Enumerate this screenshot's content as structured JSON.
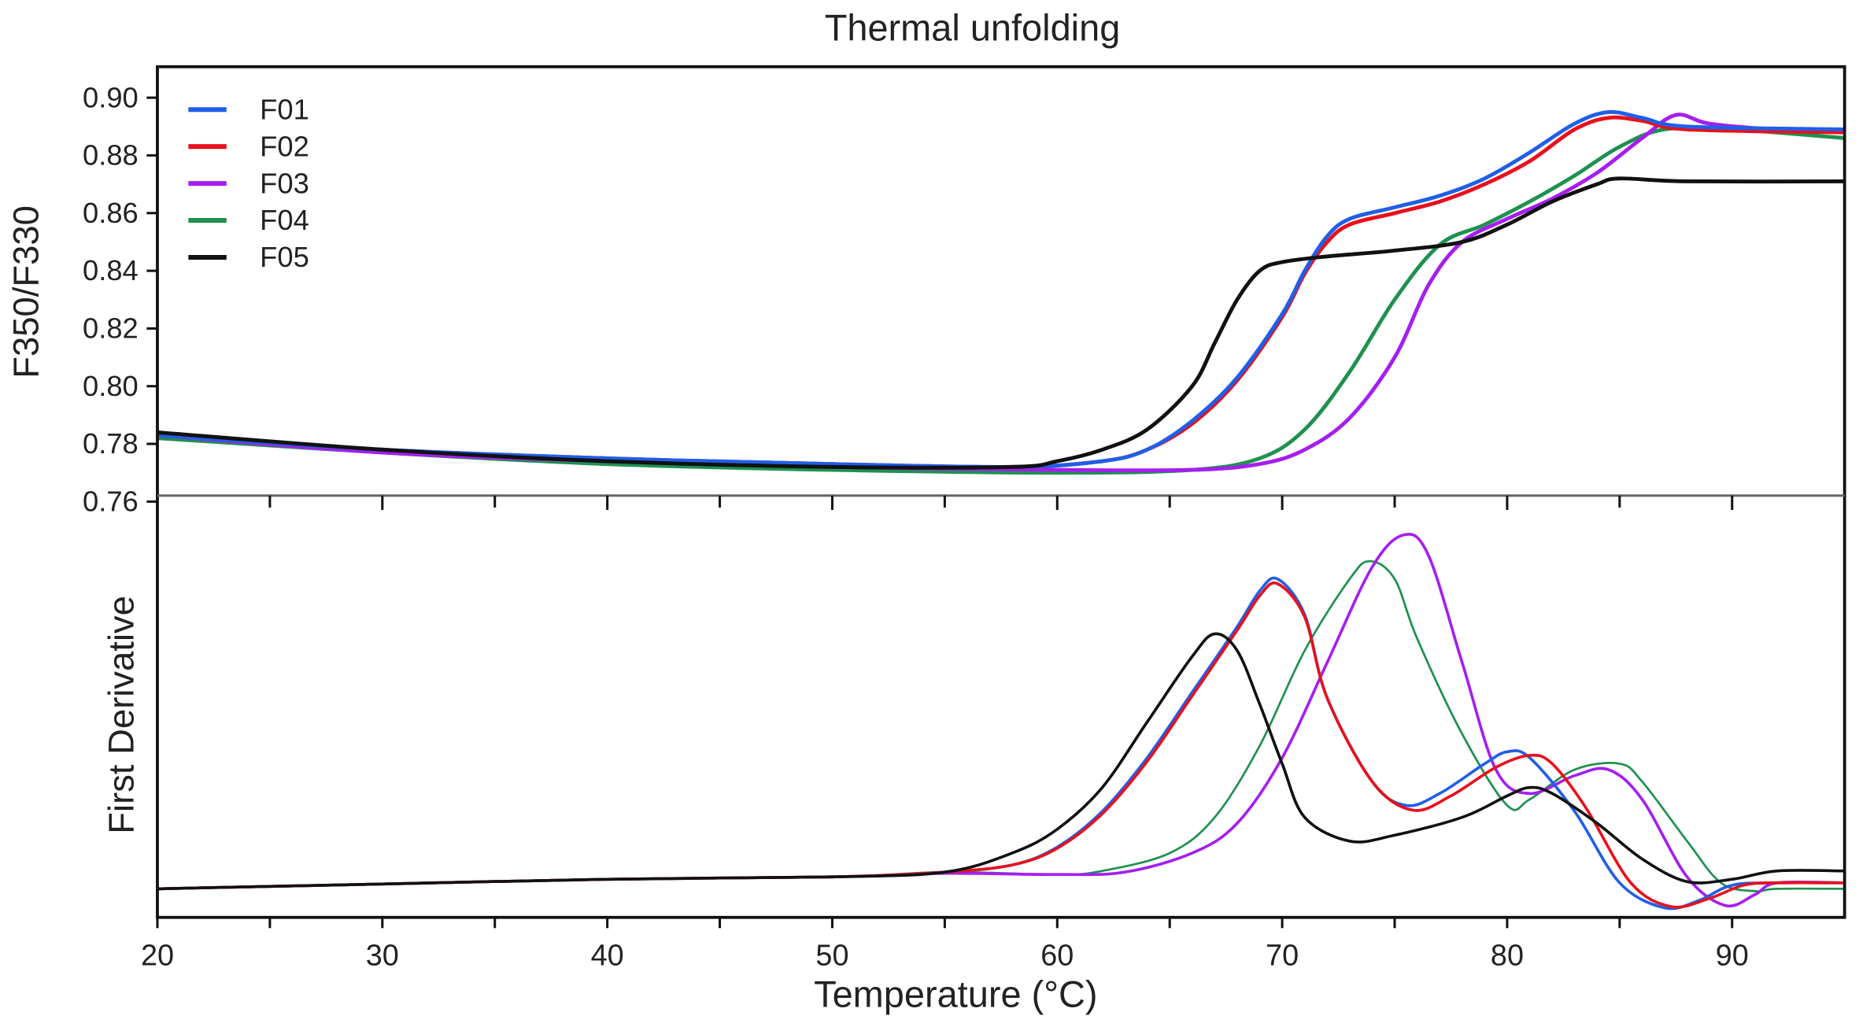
{
  "chart_data": [
    {
      "type": "line",
      "title": "Thermal unfolding",
      "xlabel": "Temperature (°C)",
      "ylabel": "F350/F330",
      "xlim": [
        20,
        95
      ],
      "ylim": [
        0.76,
        0.9
      ],
      "yticks": [
        "0.90",
        "0.88",
        "0.86",
        "0.84",
        "0.82",
        "0.80",
        "0.78",
        "0.76"
      ],
      "ytick_values": [
        0.9,
        0.88,
        0.86,
        0.84,
        0.82,
        0.8,
        0.78,
        0.76
      ],
      "legend_position": "top-left",
      "grid": false,
      "series": [
        {
          "name": "F01",
          "color": "#1f5fe8",
          "x": [
            20,
            30,
            40,
            50,
            58,
            62,
            64,
            66,
            68,
            70,
            71,
            72,
            73,
            75,
            77,
            79,
            81,
            83,
            84.5,
            86,
            88,
            95
          ],
          "y": [
            0.783,
            0.778,
            0.775,
            0.773,
            0.772,
            0.774,
            0.778,
            0.788,
            0.803,
            0.825,
            0.84,
            0.852,
            0.858,
            0.862,
            0.866,
            0.872,
            0.881,
            0.891,
            0.895,
            0.893,
            0.89,
            0.889
          ]
        },
        {
          "name": "F02",
          "color": "#e8101c",
          "x": [
            20,
            30,
            40,
            50,
            58,
            62,
            64,
            66,
            68,
            70,
            71,
            72,
            73,
            75,
            77,
            79,
            81,
            83,
            84.5,
            86,
            88,
            95
          ],
          "y": [
            0.783,
            0.778,
            0.775,
            0.773,
            0.772,
            0.774,
            0.778,
            0.787,
            0.802,
            0.824,
            0.839,
            0.85,
            0.856,
            0.86,
            0.864,
            0.87,
            0.878,
            0.889,
            0.893,
            0.892,
            0.889,
            0.888
          ]
        },
        {
          "name": "F03",
          "color": "#a51ef0",
          "x": [
            20,
            30,
            40,
            50,
            60,
            66,
            69,
            71,
            73,
            75,
            76.5,
            78,
            80,
            82,
            84,
            86,
            87.5,
            89,
            92,
            95
          ],
          "y": [
            0.783,
            0.777,
            0.774,
            0.772,
            0.771,
            0.771,
            0.773,
            0.778,
            0.789,
            0.81,
            0.835,
            0.85,
            0.858,
            0.865,
            0.874,
            0.886,
            0.894,
            0.891,
            0.889,
            0.889
          ]
        },
        {
          "name": "F04",
          "color": "#1e9150",
          "x": [
            20,
            30,
            40,
            50,
            60,
            66,
            69,
            71,
            73,
            75,
            77,
            79,
            81,
            83,
            85,
            87,
            90,
            95
          ],
          "y": [
            0.782,
            0.777,
            0.773,
            0.771,
            0.77,
            0.771,
            0.775,
            0.785,
            0.805,
            0.83,
            0.849,
            0.856,
            0.864,
            0.873,
            0.883,
            0.889,
            0.889,
            0.886
          ]
        },
        {
          "name": "F05",
          "color": "#111111",
          "x": [
            20,
            30,
            40,
            50,
            58,
            60,
            62,
            64,
            66,
            67,
            68,
            69,
            70,
            72,
            75,
            78,
            80,
            82,
            84,
            85,
            88,
            95
          ],
          "y": [
            0.784,
            0.778,
            0.774,
            0.772,
            0.772,
            0.774,
            0.778,
            0.785,
            0.8,
            0.815,
            0.83,
            0.84,
            0.843,
            0.845,
            0.847,
            0.85,
            0.856,
            0.864,
            0.87,
            0.872,
            0.871,
            0.871
          ]
        }
      ]
    },
    {
      "type": "line",
      "xlabel": "Temperature (°C)",
      "ylabel": "First Derivative",
      "xlim": [
        20,
        95
      ],
      "ylim": [
        -0.24,
        3.3
      ],
      "xticks": [
        "20",
        "30",
        "40",
        "50",
        "60",
        "70",
        "80",
        "90"
      ],
      "xtick_values": [
        20,
        30,
        40,
        50,
        60,
        70,
        80,
        90
      ],
      "grid": false,
      "series": [
        {
          "name": "F01",
          "color": "#1f5fe8",
          "x": [
            20,
            30,
            40,
            50,
            55,
            58,
            60,
            62,
            64,
            66,
            68,
            69,
            69.8,
            71,
            72,
            74,
            75.5,
            77,
            79,
            80,
            81,
            83,
            85,
            87,
            88.5,
            90,
            92,
            95
          ],
          "y": [
            0,
            0.04,
            0.08,
            0.1,
            0.14,
            0.2,
            0.35,
            0.65,
            1.1,
            1.65,
            2.2,
            2.5,
            2.6,
            2.3,
            1.6,
            0.9,
            0.7,
            0.8,
            1.05,
            1.15,
            1.1,
            0.65,
            0.05,
            -0.16,
            -0.1,
            0.03,
            0.05,
            0.05
          ]
        },
        {
          "name": "F02",
          "color": "#e8101c",
          "x": [
            20,
            30,
            40,
            50,
            55,
            58,
            60,
            62,
            64,
            66,
            68,
            69,
            69.8,
            71,
            72,
            74,
            75.8,
            77.5,
            79.5,
            81,
            82,
            83.5,
            85.5,
            87.3,
            89,
            90.5,
            92,
            95
          ],
          "y": [
            0,
            0.04,
            0.08,
            0.1,
            0.14,
            0.2,
            0.34,
            0.63,
            1.07,
            1.62,
            2.17,
            2.46,
            2.56,
            2.28,
            1.6,
            0.9,
            0.66,
            0.78,
            1.02,
            1.12,
            1.05,
            0.68,
            0.05,
            -0.15,
            -0.08,
            0.03,
            0.05,
            0.05
          ]
        },
        {
          "name": "F03",
          "color": "#a51ef0",
          "x": [
            20,
            30,
            40,
            50,
            55,
            60,
            63,
            66,
            68,
            70,
            72,
            74,
            75.4,
            76.5,
            78,
            79.5,
            81,
            83,
            84.5,
            86,
            88,
            89.7,
            91,
            92,
            95
          ],
          "y": [
            0,
            0.04,
            0.08,
            0.1,
            0.13,
            0.12,
            0.14,
            0.3,
            0.55,
            1.1,
            1.9,
            2.7,
            2.97,
            2.8,
            1.9,
            1.0,
            0.8,
            0.95,
            1.0,
            0.75,
            0.1,
            -0.14,
            -0.05,
            0.05,
            0.05
          ]
        },
        {
          "name": "F04",
          "color": "#1e9150",
          "x": [
            20,
            30,
            40,
            50,
            55,
            60,
            62,
            65,
            67,
            69,
            71,
            73,
            73.9,
            75,
            76,
            78,
            80,
            81,
            83,
            85,
            86,
            88,
            89.5,
            91,
            92,
            95
          ],
          "y": [
            0,
            0.04,
            0.08,
            0.1,
            0.14,
            0.12,
            0.15,
            0.3,
            0.6,
            1.2,
            2.0,
            2.6,
            2.75,
            2.6,
            2.1,
            1.3,
            0.7,
            0.75,
            1.0,
            1.05,
            0.9,
            0.4,
            0.05,
            -0.02,
            0,
            0
          ]
        },
        {
          "name": "F05",
          "color": "#111111",
          "x": [
            20,
            30,
            40,
            50,
            55,
            58,
            60,
            62,
            64,
            66,
            67,
            68,
            69,
            70,
            71,
            73,
            75,
            78,
            80,
            81,
            82,
            84,
            86,
            88,
            90,
            92,
            95
          ],
          "y": [
            0,
            0.04,
            0.08,
            0.1,
            0.14,
            0.3,
            0.5,
            0.85,
            1.4,
            1.95,
            2.14,
            2.0,
            1.55,
            1.05,
            0.6,
            0.4,
            0.45,
            0.6,
            0.78,
            0.85,
            0.8,
            0.55,
            0.25,
            0.06,
            0.08,
            0.15,
            0.15
          ]
        }
      ]
    }
  ]
}
